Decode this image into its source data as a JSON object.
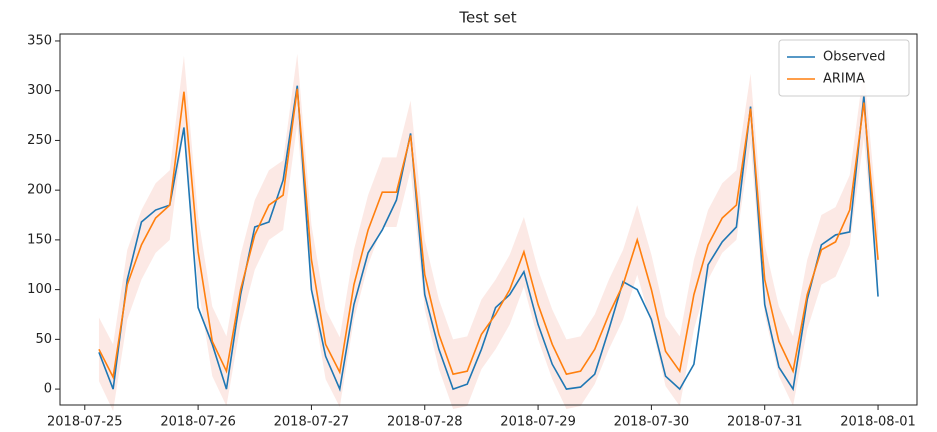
{
  "chart_data": {
    "type": "line",
    "title": "Test set",
    "x": [
      "2018-07-25T03:00",
      "2018-07-25T06:00",
      "2018-07-25T09:00",
      "2018-07-25T12:00",
      "2018-07-25T15:00",
      "2018-07-25T18:00",
      "2018-07-25T21:00",
      "2018-07-26T00:00",
      "2018-07-26T03:00",
      "2018-07-26T06:00",
      "2018-07-26T09:00",
      "2018-07-26T12:00",
      "2018-07-26T15:00",
      "2018-07-26T18:00",
      "2018-07-26T21:00",
      "2018-07-27T00:00",
      "2018-07-27T03:00",
      "2018-07-27T06:00",
      "2018-07-27T09:00",
      "2018-07-27T12:00",
      "2018-07-27T15:00",
      "2018-07-27T18:00",
      "2018-07-27T21:00",
      "2018-07-28T00:00",
      "2018-07-28T03:00",
      "2018-07-28T06:00",
      "2018-07-28T09:00",
      "2018-07-28T12:00",
      "2018-07-28T15:00",
      "2018-07-28T18:00",
      "2018-07-28T21:00",
      "2018-07-29T00:00",
      "2018-07-29T03:00",
      "2018-07-29T06:00",
      "2018-07-29T09:00",
      "2018-07-29T12:00",
      "2018-07-29T15:00",
      "2018-07-29T18:00",
      "2018-07-29T21:00",
      "2018-07-30T00:00",
      "2018-07-30T03:00",
      "2018-07-30T06:00",
      "2018-07-30T09:00",
      "2018-07-30T12:00",
      "2018-07-30T15:00",
      "2018-07-30T18:00",
      "2018-07-30T21:00",
      "2018-07-31T00:00",
      "2018-07-31T03:00",
      "2018-07-31T06:00",
      "2018-07-31T09:00",
      "2018-07-31T12:00",
      "2018-07-31T15:00",
      "2018-07-31T18:00",
      "2018-07-31T21:00",
      "2018-08-01T00:00"
    ],
    "series": [
      {
        "name": "Observed",
        "color": "#1f77b4",
        "values": [
          37,
          0,
          110,
          168,
          180,
          185,
          263,
          82,
          45,
          0,
          95,
          163,
          168,
          210,
          305,
          100,
          33,
          0,
          85,
          137,
          160,
          190,
          257,
          95,
          40,
          0,
          5,
          40,
          82,
          95,
          118,
          65,
          25,
          0,
          2,
          15,
          60,
          108,
          100,
          70,
          13,
          0,
          25,
          125,
          148,
          163,
          284,
          85,
          22,
          0,
          90,
          145,
          155,
          158,
          295,
          93
        ]
      },
      {
        "name": "ARIMA",
        "color": "#ff7f0e",
        "values": [
          40,
          12,
          105,
          145,
          172,
          185,
          299,
          138,
          48,
          18,
          100,
          155,
          185,
          195,
          302,
          130,
          45,
          17,
          105,
          160,
          198,
          198,
          255,
          115,
          55,
          15,
          18,
          55,
          75,
          100,
          138,
          85,
          45,
          15,
          18,
          40,
          75,
          105,
          150,
          100,
          38,
          18,
          95,
          145,
          172,
          185,
          282,
          110,
          48,
          18,
          95,
          140,
          148,
          180,
          288,
          130
        ]
      }
    ],
    "band": {
      "color": "#fbe3df",
      "upper": [
        72,
        45,
        140,
        180,
        207,
        220,
        335,
        173,
        83,
        53,
        135,
        190,
        220,
        230,
        337,
        165,
        80,
        52,
        140,
        195,
        233,
        233,
        290,
        150,
        90,
        50,
        53,
        90,
        110,
        135,
        173,
        120,
        80,
        50,
        53,
        75,
        110,
        140,
        185,
        135,
        73,
        53,
        130,
        180,
        207,
        220,
        317,
        145,
        83,
        53,
        130,
        175,
        183,
        215,
        323,
        165
      ],
      "lower": [
        8,
        -22,
        70,
        110,
        137,
        150,
        263,
        103,
        13,
        -17,
        65,
        120,
        150,
        160,
        267,
        95,
        10,
        -18,
        70,
        125,
        163,
        163,
        220,
        80,
        20,
        -20,
        -17,
        20,
        40,
        65,
        103,
        50,
        10,
        -20,
        -17,
        5,
        40,
        70,
        115,
        65,
        3,
        -17,
        60,
        110,
        137,
        150,
        247,
        75,
        13,
        -17,
        60,
        105,
        113,
        145,
        253,
        95
      ]
    },
    "xlim": [
      "2018-07-24T18:45",
      "2018-08-01T08:15"
    ],
    "xticks": [
      "2018-07-25",
      "2018-07-26",
      "2018-07-27",
      "2018-07-28",
      "2018-07-29",
      "2018-07-30",
      "2018-07-31",
      "2018-08-01"
    ],
    "ylim": [
      -16,
      357
    ],
    "yticks": [
      0,
      50,
      100,
      150,
      200,
      250,
      300,
      350
    ],
    "legend": "upper right"
  }
}
